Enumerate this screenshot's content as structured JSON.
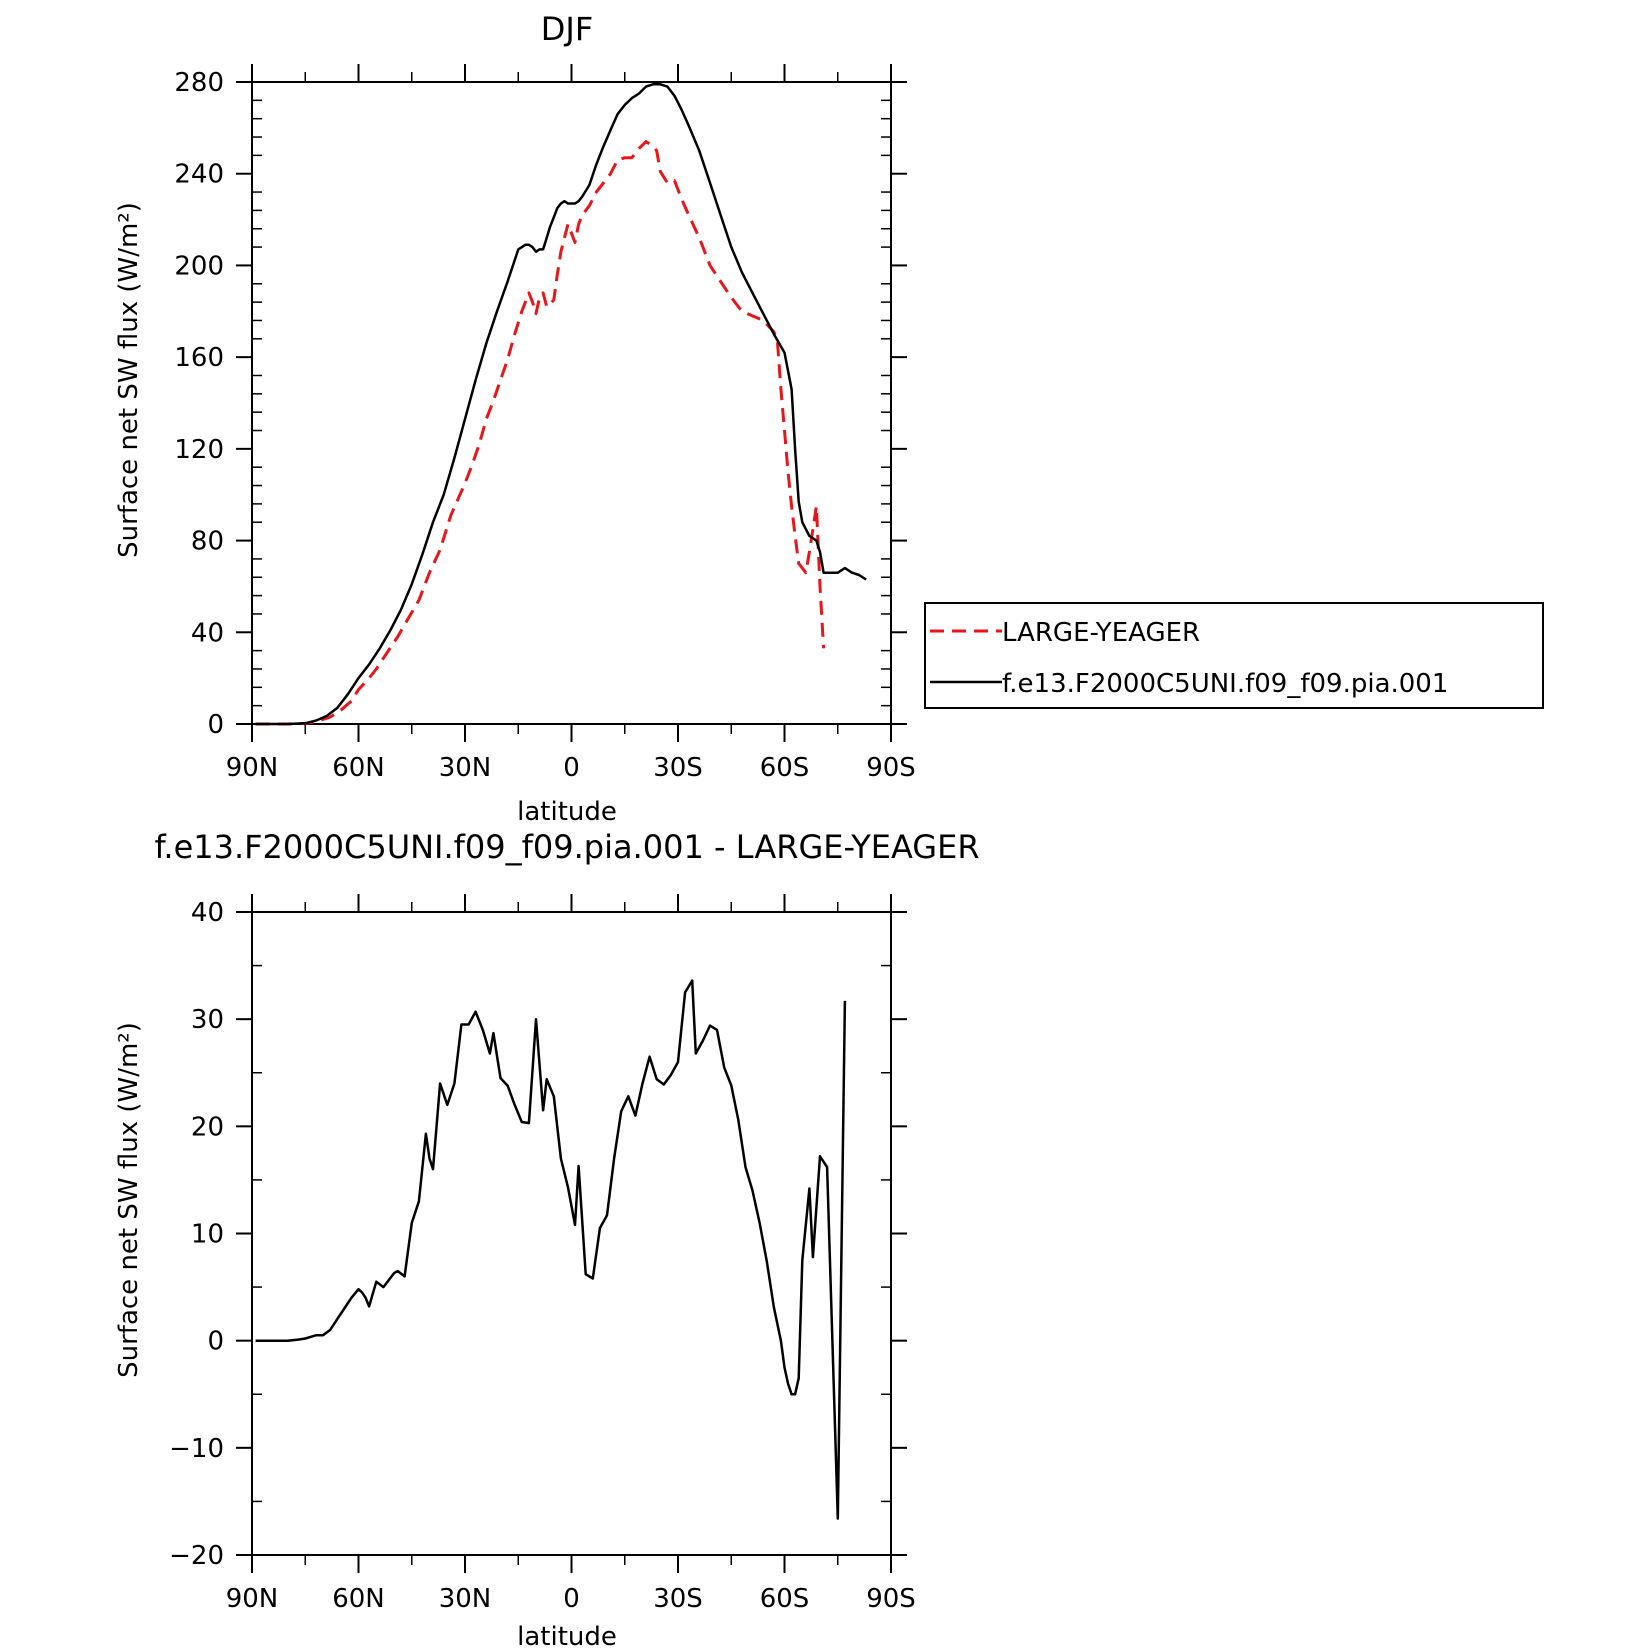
{
  "chart_data": [
    {
      "type": "line",
      "title": "DJF",
      "xlabel": "latitude",
      "ylabel": "Surface net SW flux (W/m²)",
      "xlim": [
        90,
        -90
      ],
      "ylim": [
        0,
        280
      ],
      "x_ticks": [
        90,
        60,
        30,
        0,
        -30,
        -60,
        -90
      ],
      "x_tick_labels": [
        "90N",
        "60N",
        "30N",
        "0",
        "30S",
        "60S",
        "90S"
      ],
      "y_ticks": [
        0,
        40,
        80,
        120,
        160,
        200,
        240,
        280
      ],
      "y_tick_labels": [
        "0",
        "40",
        "80",
        "120",
        "160",
        "200",
        "240",
        "280"
      ],
      "legend_position": "right",
      "series": [
        {
          "name": "LARGE-YEAGER",
          "color": "#e8161b",
          "dash": "dashed",
          "points": [
            [
              89,
              0
            ],
            [
              85,
              0
            ],
            [
              80,
              0
            ],
            [
              75,
              0.2
            ],
            [
              72,
              1
            ],
            [
              68,
              3
            ],
            [
              65,
              6
            ],
            [
              62,
              10
            ],
            [
              60,
              15
            ],
            [
              57,
              20
            ],
            [
              55,
              24
            ],
            [
              52,
              31
            ],
            [
              49,
              38
            ],
            [
              46,
              46
            ],
            [
              43,
              54
            ],
            [
              40,
              66
            ],
            [
              37,
              76
            ],
            [
              34,
              91
            ],
            [
              32,
              98
            ],
            [
              30,
              105
            ],
            [
              28,
              113
            ],
            [
              26,
              122
            ],
            [
              24,
              133
            ],
            [
              22,
              141
            ],
            [
              20,
              150
            ],
            [
              18,
              159
            ],
            [
              16,
              170
            ],
            [
              14,
              180
            ],
            [
              12,
              188
            ],
            [
              11,
              184
            ],
            [
              10,
              179
            ],
            [
              9,
              186
            ],
            [
              8,
              188
            ],
            [
              7,
              182
            ],
            [
              6,
              183
            ],
            [
              5,
              185
            ],
            [
              4,
              196
            ],
            [
              3,
              206
            ],
            [
              2,
              212
            ],
            [
              1,
              218
            ],
            [
              0,
              214
            ],
            [
              -1,
              210
            ],
            [
              -2,
              218
            ],
            [
              -3,
              222
            ],
            [
              -5,
              226
            ],
            [
              -7,
              232
            ],
            [
              -9,
              236
            ],
            [
              -11,
              240
            ],
            [
              -13,
              246
            ],
            [
              -15,
              247
            ],
            [
              -17,
              247
            ],
            [
              -19,
              251
            ],
            [
              -21,
              254
            ],
            [
              -23,
              252
            ],
            [
              -24,
              250
            ],
            [
              -25,
              241
            ],
            [
              -27,
              236
            ],
            [
              -29,
              237
            ],
            [
              -31,
              229
            ],
            [
              -33,
              222
            ],
            [
              -36,
              212
            ],
            [
              -39,
              200
            ],
            [
              -42,
              193
            ],
            [
              -45,
              186
            ],
            [
              -48,
              180
            ],
            [
              -51,
              178
            ],
            [
              -54,
              176
            ],
            [
              -57,
              171
            ],
            [
              -58,
              167
            ],
            [
              -59,
              146
            ],
            [
              -60,
              128
            ],
            [
              -61,
              110
            ],
            [
              -62,
              95
            ],
            [
              -63,
              82
            ],
            [
              -64,
              70
            ],
            [
              -65,
              68
            ],
            [
              -66,
              66
            ],
            [
              -67,
              75
            ],
            [
              -68,
              85
            ],
            [
              -69,
              95
            ],
            [
              -70,
              60
            ],
            [
              -71,
              33
            ]
          ]
        },
        {
          "name": "f.e13.F2000C5UNI.f09_f09.pia.001",
          "color": "#000000",
          "dash": "solid",
          "points": [
            [
              89,
              0
            ],
            [
              85,
              0
            ],
            [
              80,
              0
            ],
            [
              75,
              0.3
            ],
            [
              72,
              1.5
            ],
            [
              69,
              3.5
            ],
            [
              66,
              7
            ],
            [
              63,
              13
            ],
            [
              60,
              20
            ],
            [
              57,
              26
            ],
            [
              54,
              33
            ],
            [
              51,
              41
            ],
            [
              48,
              50
            ],
            [
              45,
              61
            ],
            [
              42,
              74
            ],
            [
              39,
              88
            ],
            [
              36,
              100
            ],
            [
              33,
              116
            ],
            [
              30,
              133
            ],
            [
              27,
              150
            ],
            [
              24,
              166
            ],
            [
              21,
              180
            ],
            [
              18,
              193
            ],
            [
              15,
              207
            ],
            [
              13,
              209
            ],
            [
              12,
              209
            ],
            [
              11,
              208
            ],
            [
              10,
              206
            ],
            [
              9,
              207
            ],
            [
              8,
              207
            ],
            [
              7,
              212
            ],
            [
              6,
              217
            ],
            [
              5,
              221
            ],
            [
              4,
              225
            ],
            [
              3,
              227
            ],
            [
              2,
              228
            ],
            [
              1,
              227
            ],
            [
              0,
              227
            ],
            [
              -1,
              227
            ],
            [
              -2,
              228
            ],
            [
              -3,
              230
            ],
            [
              -5,
              235
            ],
            [
              -7,
              244
            ],
            [
              -9,
              252
            ],
            [
              -11,
              259
            ],
            [
              -13,
              266
            ],
            [
              -15,
              270
            ],
            [
              -17,
              273
            ],
            [
              -19,
              275
            ],
            [
              -21,
              278
            ],
            [
              -23,
              279
            ],
            [
              -25,
              279
            ],
            [
              -27,
              278
            ],
            [
              -29,
              274
            ],
            [
              -31,
              268
            ],
            [
              -33,
              261
            ],
            [
              -36,
              250
            ],
            [
              -39,
              236
            ],
            [
              -42,
              222
            ],
            [
              -45,
              208
            ],
            [
              -48,
              197
            ],
            [
              -51,
              188
            ],
            [
              -54,
              179
            ],
            [
              -57,
              170
            ],
            [
              -60,
              162
            ],
            [
              -62,
              146
            ],
            [
              -63,
              120
            ],
            [
              -64,
              97
            ],
            [
              -65,
              88
            ],
            [
              -66,
              85
            ],
            [
              -67,
              82
            ],
            [
              -69,
              80
            ],
            [
              -70,
              75
            ],
            [
              -71,
              66
            ],
            [
              -73,
              66
            ],
            [
              -75,
              66
            ],
            [
              -77,
              68
            ],
            [
              -79,
              66
            ],
            [
              -81,
              65
            ],
            [
              -83,
              63
            ]
          ]
        }
      ]
    },
    {
      "type": "line",
      "title": "f.e13.F2000C5UNI.f09_f09.pia.001 - LARGE-YEAGER",
      "xlabel": "latitude",
      "ylabel": "Surface net SW flux (W/m²)",
      "xlim": [
        90,
        -90
      ],
      "ylim": [
        -20,
        40
      ],
      "x_ticks": [
        90,
        60,
        30,
        0,
        -30,
        -60,
        -90
      ],
      "x_tick_labels": [
        "90N",
        "60N",
        "30N",
        "0",
        "30S",
        "60S",
        "90S"
      ],
      "y_ticks": [
        -20,
        -10,
        0,
        10,
        20,
        30,
        40
      ],
      "y_tick_labels": [
        "−20",
        "−10",
        "0",
        "10",
        "20",
        "30",
        "40"
      ],
      "series": [
        {
          "color": "#000000",
          "dash": "solid",
          "points": [
            [
              89,
              0
            ],
            [
              85,
              0
            ],
            [
              80,
              0
            ],
            [
              77,
              0.1
            ],
            [
              75,
              0.2
            ],
            [
              72,
              0.5
            ],
            [
              71,
              0.5
            ],
            [
              70,
              0.5
            ],
            [
              68,
              1
            ],
            [
              66,
              2
            ],
            [
              64,
              3
            ],
            [
              62,
              4
            ],
            [
              60,
              4.8
            ],
            [
              59,
              4.5
            ],
            [
              58,
              4
            ],
            [
              57,
              3.2
            ],
            [
              55,
              5.5
            ],
            [
              53,
              5
            ],
            [
              50,
              6.3
            ],
            [
              49,
              6.5
            ],
            [
              47,
              6
            ],
            [
              45,
              11
            ],
            [
              43,
              13
            ],
            [
              41,
              19.3
            ],
            [
              40,
              17
            ],
            [
              39,
              16
            ],
            [
              37,
              24
            ],
            [
              35,
              22
            ],
            [
              33,
              24
            ],
            [
              31,
              29.5
            ],
            [
              29,
              29.5
            ],
            [
              27,
              30.7
            ],
            [
              25,
              29
            ],
            [
              23,
              26.8
            ],
            [
              22,
              28.7
            ],
            [
              20,
              24.5
            ],
            [
              18,
              23.8
            ],
            [
              16,
              22
            ],
            [
              14,
              20.4
            ],
            [
              12,
              20.3
            ],
            [
              10,
              30
            ],
            [
              8,
              21.5
            ],
            [
              7,
              24.4
            ],
            [
              5,
              22.8
            ],
            [
              3,
              17
            ],
            [
              1,
              14.3
            ],
            [
              -1,
              10.8
            ],
            [
              -2,
              16.3
            ],
            [
              -4,
              6.2
            ],
            [
              -6,
              5.8
            ],
            [
              -8,
              10.5
            ],
            [
              -10,
              11.7
            ],
            [
              -12,
              17
            ],
            [
              -14,
              21.4
            ],
            [
              -16,
              22.8
            ],
            [
              -18,
              21
            ],
            [
              -20,
              24
            ],
            [
              -22,
              26.5
            ],
            [
              -24,
              24.4
            ],
            [
              -26,
              23.9
            ],
            [
              -28,
              24.8
            ],
            [
              -30,
              26
            ],
            [
              -32,
              32.5
            ],
            [
              -34,
              33.6
            ],
            [
              -35,
              26.8
            ],
            [
              -37,
              28
            ],
            [
              -39,
              29.4
            ],
            [
              -41,
              29
            ],
            [
              -43,
              25.5
            ],
            [
              -45,
              23.8
            ],
            [
              -47,
              20.6
            ],
            [
              -49,
              16.2
            ],
            [
              -51,
              14
            ],
            [
              -53,
              11
            ],
            [
              -55,
              7.4
            ],
            [
              -57,
              3.1
            ],
            [
              -59,
              0
            ],
            [
              -60,
              -2.5
            ],
            [
              -61,
              -4
            ],
            [
              -62,
              -5
            ],
            [
              -63,
              -5
            ],
            [
              -64,
              -3.5
            ],
            [
              -65,
              7.5
            ],
            [
              -67,
              14.2
            ],
            [
              -68,
              7.8
            ],
            [
              -70,
              17.2
            ],
            [
              -72,
              16.2
            ],
            [
              -75,
              -16.6
            ],
            [
              -77,
              31.7
            ]
          ]
        }
      ]
    }
  ]
}
